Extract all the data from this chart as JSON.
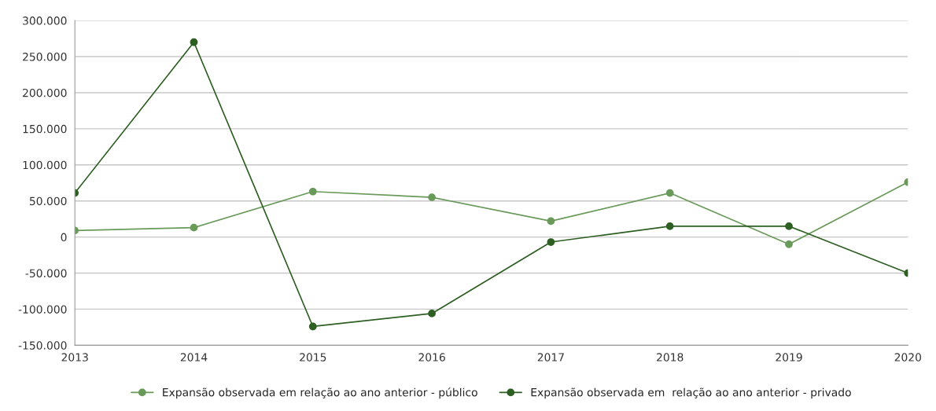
{
  "chart_data": {
    "type": "line",
    "categories": [
      "2013",
      "2014",
      "2015",
      "2016",
      "2017",
      "2018",
      "2019",
      "2020"
    ],
    "series": [
      {
        "name": "Expansão observada em relação ao ano anterior - público",
        "color": "#6a9a5a",
        "values": [
          9000,
          13000,
          63000,
          55000,
          22000,
          61000,
          -10000,
          76000
        ]
      },
      {
        "name": "Expansão observada em  relação ao ano anterior - privado",
        "color": "#2d5e22",
        "values": [
          61000,
          270000,
          -124000,
          -106000,
          -7000,
          15000,
          15000,
          -50000
        ]
      }
    ],
    "ylim": [
      -150000,
      300000
    ],
    "yticks": [
      {
        "value": -150000,
        "label": "-150.000"
      },
      {
        "value": -100000,
        "label": "-100.000"
      },
      {
        "value": -50000,
        "label": "-50.000"
      },
      0,
      {
        "value": 50000,
        "label": "50.000"
      },
      {
        "value": 100000,
        "label": "100.000"
      },
      {
        "value": 150000,
        "label": "150.000"
      },
      {
        "value": 200000,
        "label": "200.000"
      },
      {
        "value": 250000,
        "label": "250.000"
      },
      {
        "value": 300000,
        "label": "300.000"
      }
    ],
    "grid": "y",
    "legend": "bottom",
    "marker": "circle",
    "line_style": "solid"
  }
}
